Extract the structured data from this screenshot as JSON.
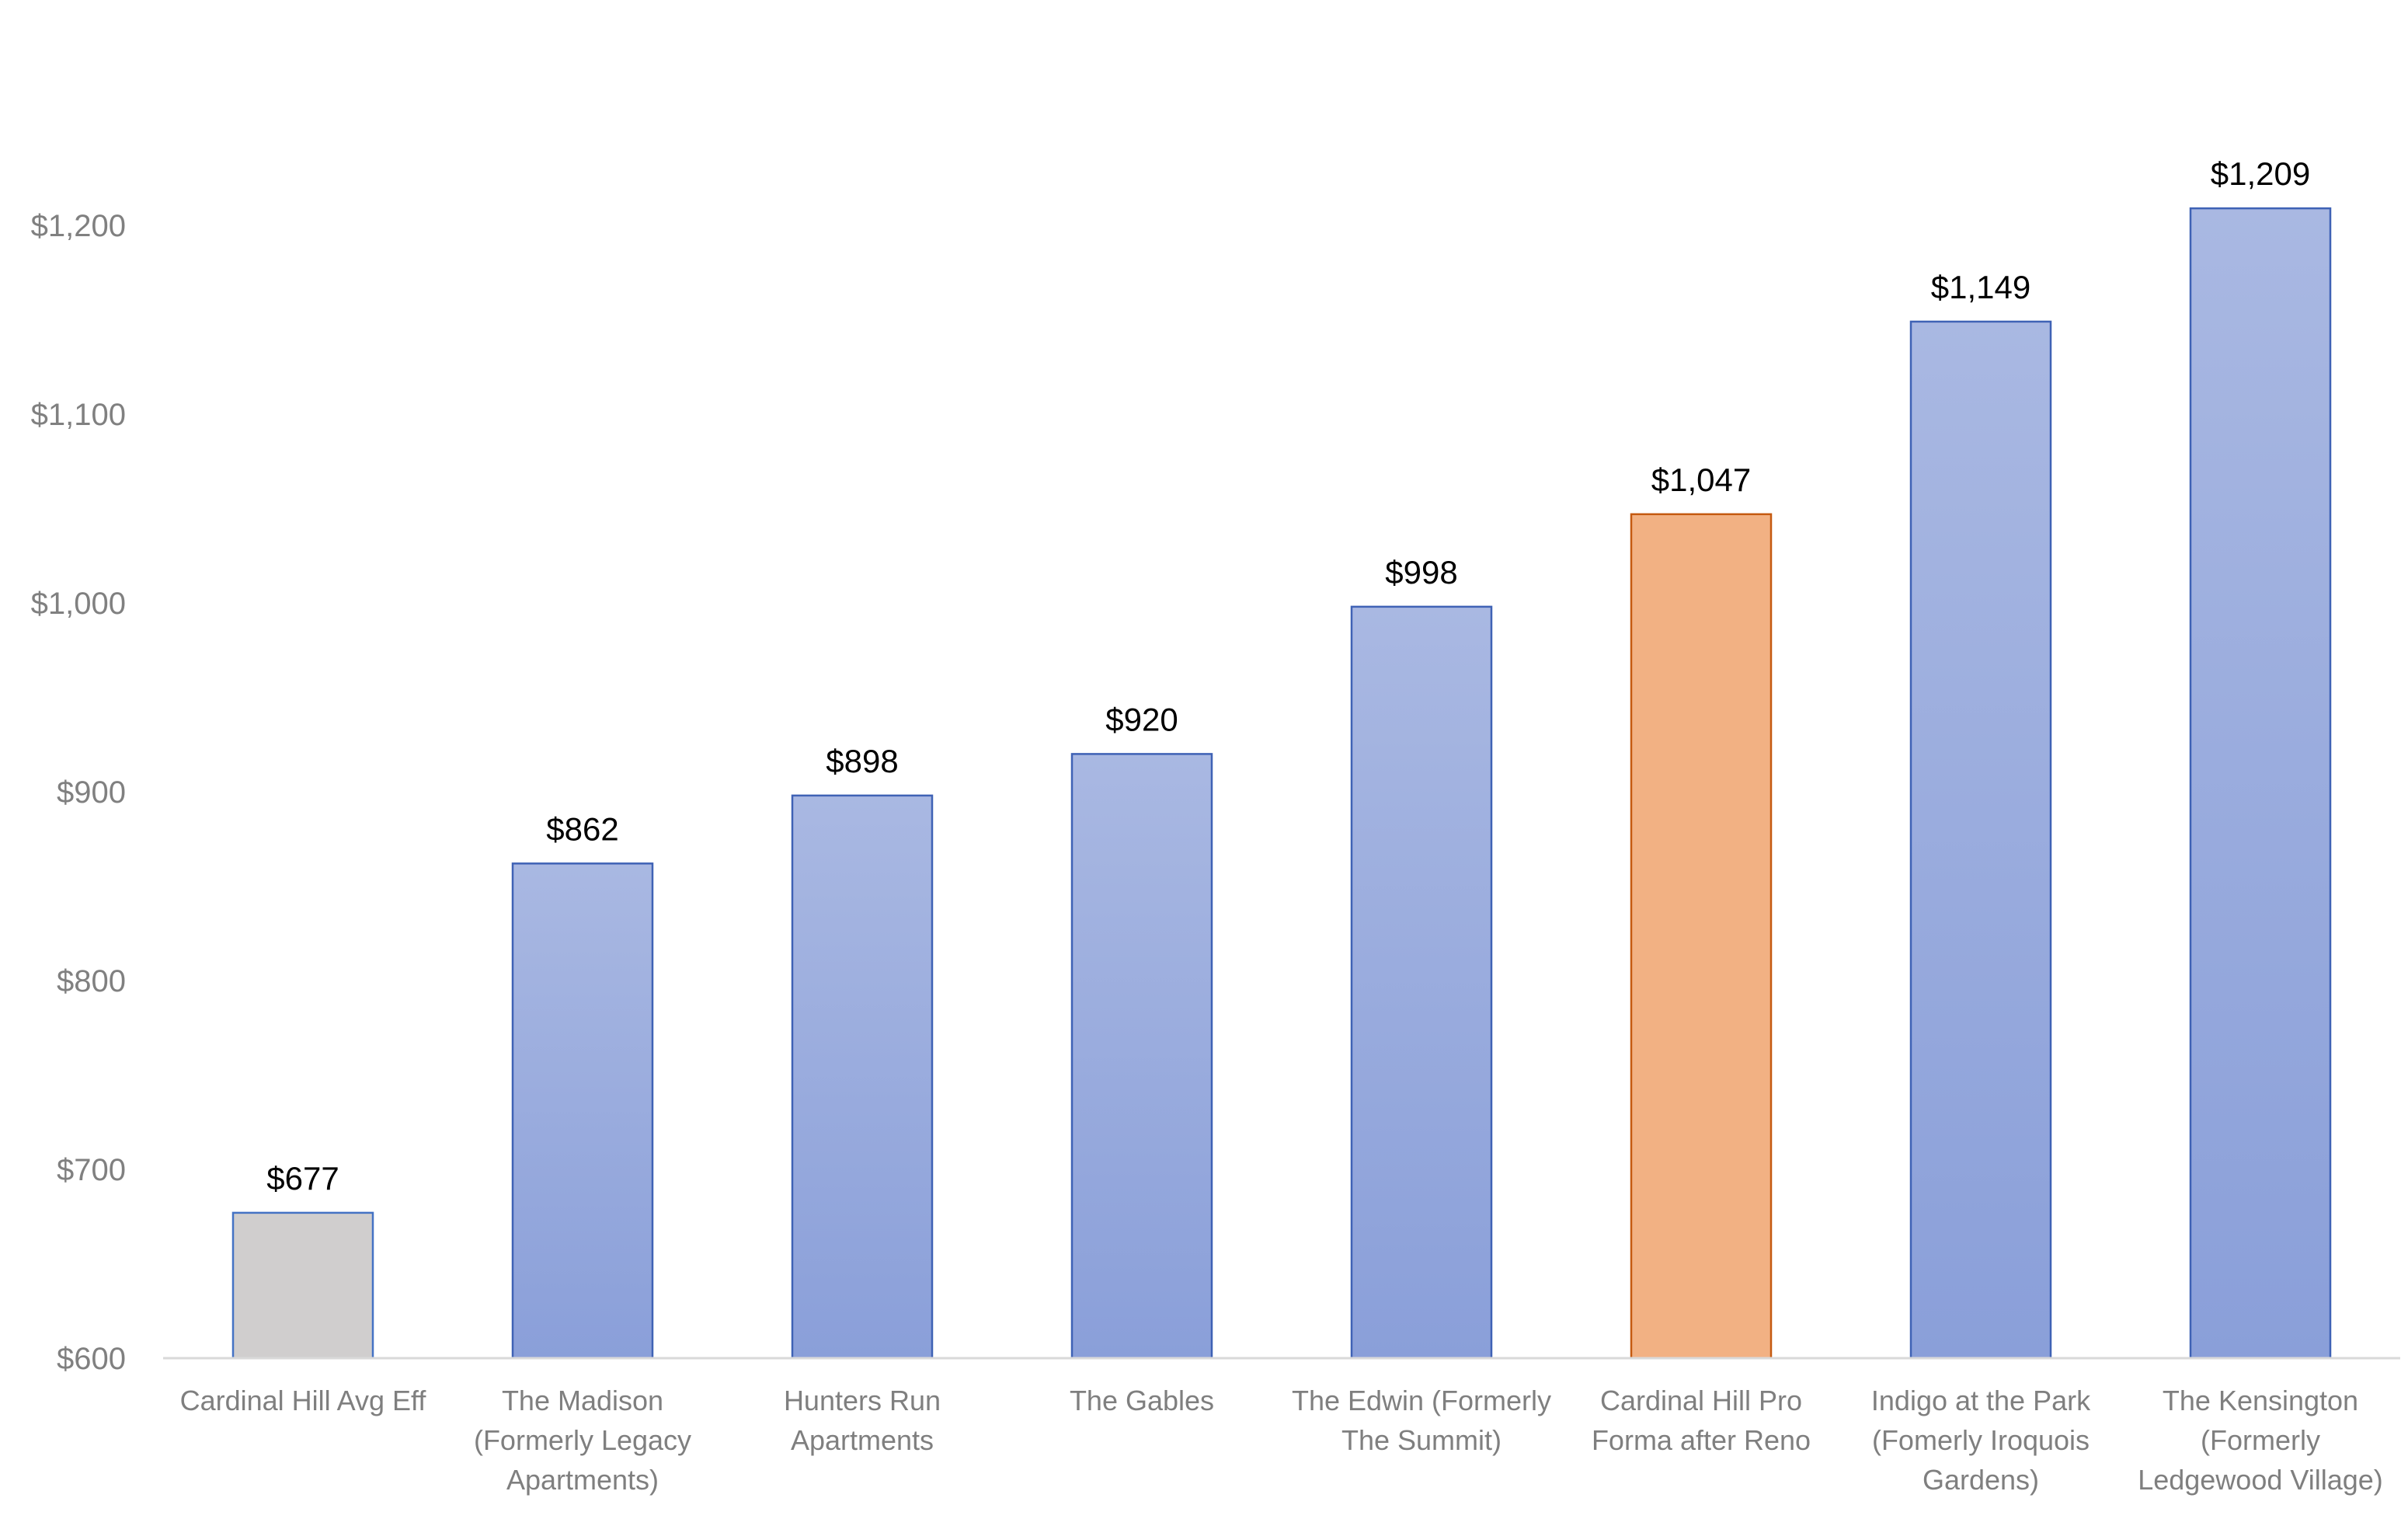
{
  "chart_data": {
    "type": "bar",
    "title": "",
    "xlabel": "",
    "ylabel": "",
    "ylim": [
      600,
      1250
    ],
    "yticks": [
      600,
      700,
      800,
      900,
      1000,
      1100,
      1200
    ],
    "ytick_labels": [
      "$600",
      "$700",
      "$800",
      "$900",
      "$1,000",
      "$1,100",
      "$1,200"
    ],
    "grid": false,
    "legend": "none",
    "categories": [
      [
        "Cardinal Hill Avg Eff"
      ],
      [
        "The Madison",
        "(Formerly Legacy",
        "Apartments)"
      ],
      [
        "Hunters Run",
        "Apartments"
      ],
      [
        "The Gables"
      ],
      [
        "The Edwin (Formerly",
        "The Summit)"
      ],
      [
        "Cardinal Hill Pro",
        "Forma after Reno"
      ],
      [
        "Indigo at the Park",
        "(Fomerly Iroquois",
        "Gardens)"
      ],
      [
        "The Kensington",
        "(Formerly",
        "Ledgewood Village)"
      ]
    ],
    "values": [
      677,
      862,
      898,
      920,
      998,
      1047,
      1149,
      1209
    ],
    "data_labels": [
      "$677",
      "$862",
      "$898",
      "$920",
      "$998",
      "$1,047",
      "$1,149",
      "$1,209"
    ],
    "bar_styles": [
      "gray",
      "blue",
      "blue",
      "blue",
      "blue",
      "orange",
      "blue",
      "blue"
    ],
    "colors": {
      "blue_top": "#a9b8e2",
      "blue_bottom": "#8a9fd9",
      "blue_edge": "#3f62b5",
      "orange_fill": "#f2b183",
      "orange_edge": "#c55a11",
      "gray_fill": "#d0cece",
      "gray_edge": "#4472c4",
      "axis": "#d9d9d9"
    }
  }
}
